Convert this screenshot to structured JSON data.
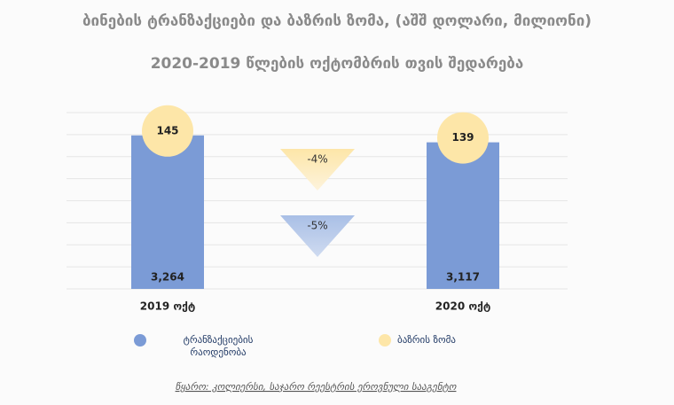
{
  "chart_data": {
    "type": "bar",
    "title": "ბინების ტრანზაქციები და ბაზრის ზომა, (აშშ დოლარი, მილიონი)",
    "subtitle": "2020-2019 წლების ოქტომბრის თვის შედარება",
    "categories": [
      "2019 ოქტ",
      "2020 ოქტ"
    ],
    "ylim": [
      0,
      3750
    ],
    "grid": true,
    "series": [
      {
        "name": "ტრანზაქციების რაოდენობა",
        "color": "#7b9bd6",
        "values": [
          3264,
          3117
        ],
        "value_labels": [
          "3,264",
          "3,117"
        ],
        "change": -5,
        "change_label": "-5%"
      },
      {
        "name": "ბაზრის ზომა",
        "color": "#fde6a8",
        "values": [
          145,
          139
        ],
        "change": -4,
        "change_label": "-4%"
      }
    ],
    "source": "წყარო: კოლიერსი, საჯარო რეესტრის ეროვნული სააგენტო"
  }
}
